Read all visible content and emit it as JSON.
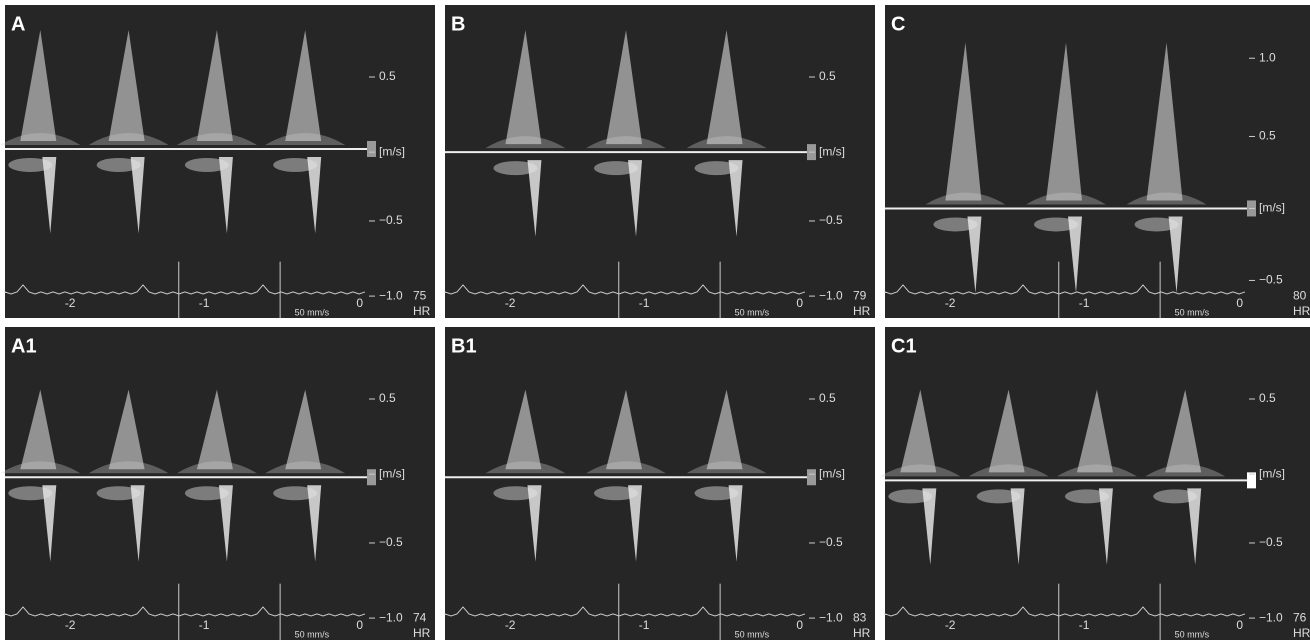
{
  "panels": [
    {
      "label": "A",
      "scale": [
        "0.5",
        "[m/s]",
        "−0.5",
        "−1.0"
      ],
      "hr": "75",
      "hr_label": "HR",
      "x_labels": [
        "-2",
        "-1",
        "0"
      ],
      "speed": "50 mm/s"
    },
    {
      "label": "B",
      "scale": [
        "0.5",
        "[m/s]",
        "−0.5",
        "−1.0"
      ],
      "hr": "79",
      "hr_label": "HR",
      "x_labels": [
        "-2",
        "-1",
        "0"
      ],
      "speed": "50 mm/s"
    },
    {
      "label": "C",
      "scale": [
        "1.0",
        "0.5",
        "[m/s]",
        "−0.5"
      ],
      "hr": "80",
      "hr_label": "HR",
      "x_labels": [
        "-2",
        "-1",
        "0"
      ],
      "speed": "50 mm/s"
    },
    {
      "label": "A1",
      "scale": [
        "0.5",
        "[m/s]",
        "−0.5",
        "−1.0"
      ],
      "hr": "74",
      "hr_label": "HR",
      "x_labels": [
        "-2",
        "-1",
        "0"
      ],
      "speed": "50 mm/s"
    },
    {
      "label": "B1",
      "scale": [
        "0.5",
        "[m/s]",
        "−0.5",
        "−1.0"
      ],
      "hr": "83",
      "hr_label": "HR",
      "x_labels": [
        "-2",
        "-1",
        "0"
      ],
      "speed": "50 mm/s"
    },
    {
      "label": "C1",
      "scale": [
        "0.5",
        "[m/s]",
        "−0.5",
        "−1.0"
      ],
      "hr": "76",
      "hr_label": "HR",
      "x_labels": [
        "-2",
        "-1",
        "0"
      ],
      "speed": "50 mm/s"
    }
  ]
}
